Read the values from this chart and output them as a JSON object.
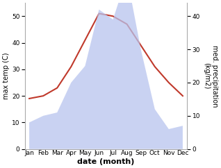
{
  "months": [
    "Jan",
    "Feb",
    "Mar",
    "Apr",
    "May",
    "Jun",
    "Jul",
    "Aug",
    "Sep",
    "Oct",
    "Nov",
    "Dec"
  ],
  "temperature": [
    19,
    20,
    23,
    31,
    41,
    51,
    50,
    47,
    39,
    31,
    25,
    20
  ],
  "precipitation": [
    8,
    10,
    11,
    20,
    25,
    42,
    39,
    52,
    30,
    12,
    6,
    7
  ],
  "temp_color": "#c0392b",
  "precip_fill_color": "#b8c4ee",
  "precip_fill_alpha": 0.75,
  "xlabel": "date (month)",
  "ylabel_left": "max temp (C)",
  "ylabel_right": "med. precipitation\n(kg/m2)",
  "ylim_left": [
    0,
    55
  ],
  "ylim_right": [
    0,
    44
  ],
  "yticks_left": [
    0,
    10,
    20,
    30,
    40,
    50
  ],
  "yticks_right": [
    0,
    10,
    20,
    30,
    40
  ],
  "bg_color": "#ffffff",
  "spine_color": "#aaaaaa",
  "temp_linewidth": 1.5,
  "xlabel_fontsize": 8,
  "ylabel_fontsize": 7,
  "tick_fontsize": 6.5
}
